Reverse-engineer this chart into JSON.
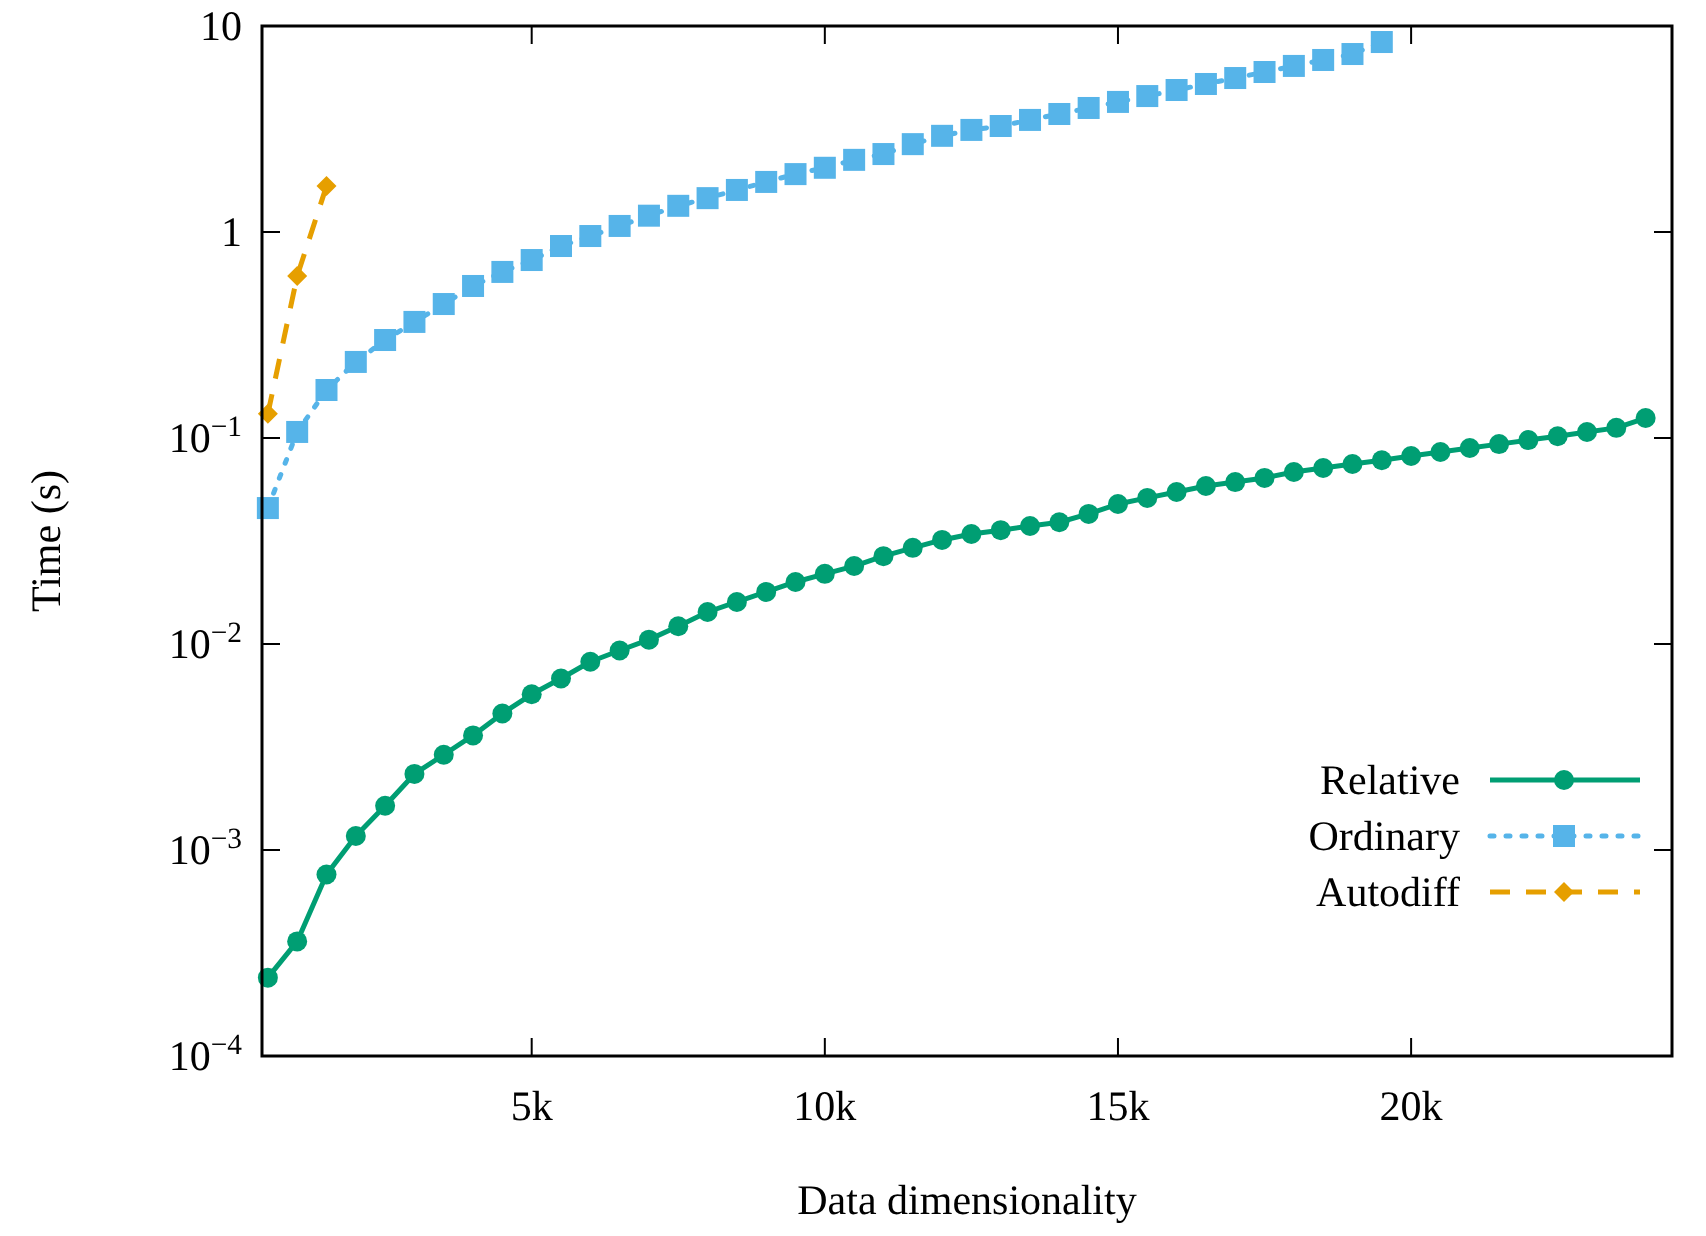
{
  "chart_data": {
    "type": "line",
    "xlabel": "Data dimensionality",
    "ylabel": "Time (s)",
    "log": "y",
    "grid": false,
    "legend": "bottom right",
    "xlim": [
      400,
      24450
    ],
    "xticks": [
      {
        "value": 5000,
        "label": "5k"
      },
      {
        "value": 10000,
        "label": "10k"
      },
      {
        "value": 15000,
        "label": "15k"
      },
      {
        "value": 20000,
        "label": "20k"
      }
    ],
    "ylim": [
      0.0001,
      10
    ],
    "yticks": [
      {
        "value": 0.0001,
        "label": "10$^{−4}$"
      },
      {
        "value": 0.001,
        "label": "10$^{−3}$"
      },
      {
        "value": 0.01,
        "label": "10$^{−2}$"
      },
      {
        "value": 0.1,
        "label": "10$^{−1}$"
      },
      1,
      10
    ],
    "series": [
      {
        "name": "Relative",
        "color": "#009e73",
        "marker": "circle",
        "line_style": "solid",
        "x": [
          500,
          1000,
          1500,
          2000,
          2500,
          3000,
          3500,
          4000,
          4500,
          5000,
          5500,
          6000,
          6500,
          7000,
          7500,
          8000,
          8500,
          9000,
          9500,
          10000,
          10500,
          11000,
          11500,
          12000,
          12500,
          13000,
          13500,
          14000,
          14500,
          15000,
          15500,
          16000,
          16500,
          17000,
          17500,
          18000,
          18500,
          19000,
          19500,
          20000,
          20500,
          21000,
          21500,
          22000,
          22500,
          23000,
          23500,
          24000
        ],
        "values": [
          0.00024,
          0.00036,
          0.00076,
          0.00117,
          0.00164,
          0.00234,
          0.0029,
          0.0036,
          0.0046,
          0.0057,
          0.0068,
          0.0082,
          0.0093,
          0.0105,
          0.0122,
          0.0143,
          0.016,
          0.0179,
          0.02,
          0.0219,
          0.0239,
          0.0267,
          0.0293,
          0.032,
          0.0342,
          0.0357,
          0.0374,
          0.039,
          0.0428,
          0.0478,
          0.0512,
          0.0547,
          0.0585,
          0.0611,
          0.064,
          0.0684,
          0.0715,
          0.0748,
          0.078,
          0.0818,
          0.0855,
          0.0894,
          0.0934,
          0.0977,
          0.102,
          0.107,
          0.112,
          0.125
        ]
      },
      {
        "name": "Ordinary",
        "color": "#56b4e9",
        "marker": "square",
        "line_style": "dotted",
        "x": [
          500,
          1000,
          1500,
          2000,
          2500,
          3000,
          3500,
          4000,
          4500,
          5000,
          5500,
          6000,
          6500,
          7000,
          7500,
          8000,
          8500,
          9000,
          9500,
          10000,
          10500,
          11000,
          11500,
          12000,
          12500,
          13000,
          13500,
          14000,
          14500,
          15000,
          15500,
          16000,
          16500,
          17000,
          17500,
          18000,
          18500,
          19000,
          19500
        ],
        "values": [
          0.0457,
          0.107,
          0.171,
          0.234,
          0.299,
          0.366,
          0.447,
          0.547,
          0.64,
          0.731,
          0.855,
          0.956,
          1.07,
          1.2,
          1.34,
          1.46,
          1.6,
          1.75,
          1.91,
          2.05,
          2.24,
          2.39,
          2.67,
          2.93,
          3.13,
          3.27,
          3.5,
          3.74,
          4.0,
          4.28,
          4.57,
          4.89,
          5.23,
          5.59,
          5.98,
          6.4,
          6.84,
          7.31,
          8.36
        ]
      },
      {
        "name": "Autodiff",
        "color": "#e69f00",
        "marker": "diamond",
        "line_style": "dashed",
        "x": [
          500,
          1000,
          1500
        ],
        "values": [
          0.131,
          0.611,
          1.67
        ]
      }
    ]
  }
}
